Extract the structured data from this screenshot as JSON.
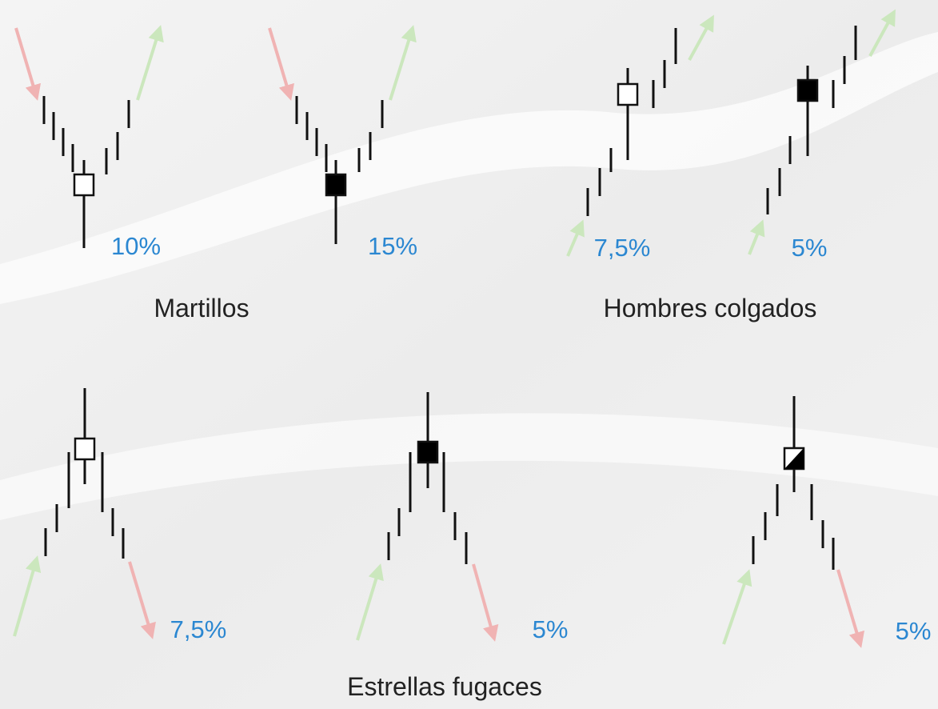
{
  "groups": [
    {
      "label": "Martillos",
      "items": [
        {
          "pct": "10%"
        },
        {
          "pct": "15%"
        }
      ]
    },
    {
      "label": "Hombres colgados",
      "items": [
        {
          "pct": "7,5%"
        },
        {
          "pct": "5%"
        }
      ]
    },
    {
      "label": "Estrellas fugaces",
      "items": [
        {
          "pct": "7,5%"
        },
        {
          "pct": "5%"
        },
        {
          "pct": "5%"
        }
      ]
    }
  ]
}
